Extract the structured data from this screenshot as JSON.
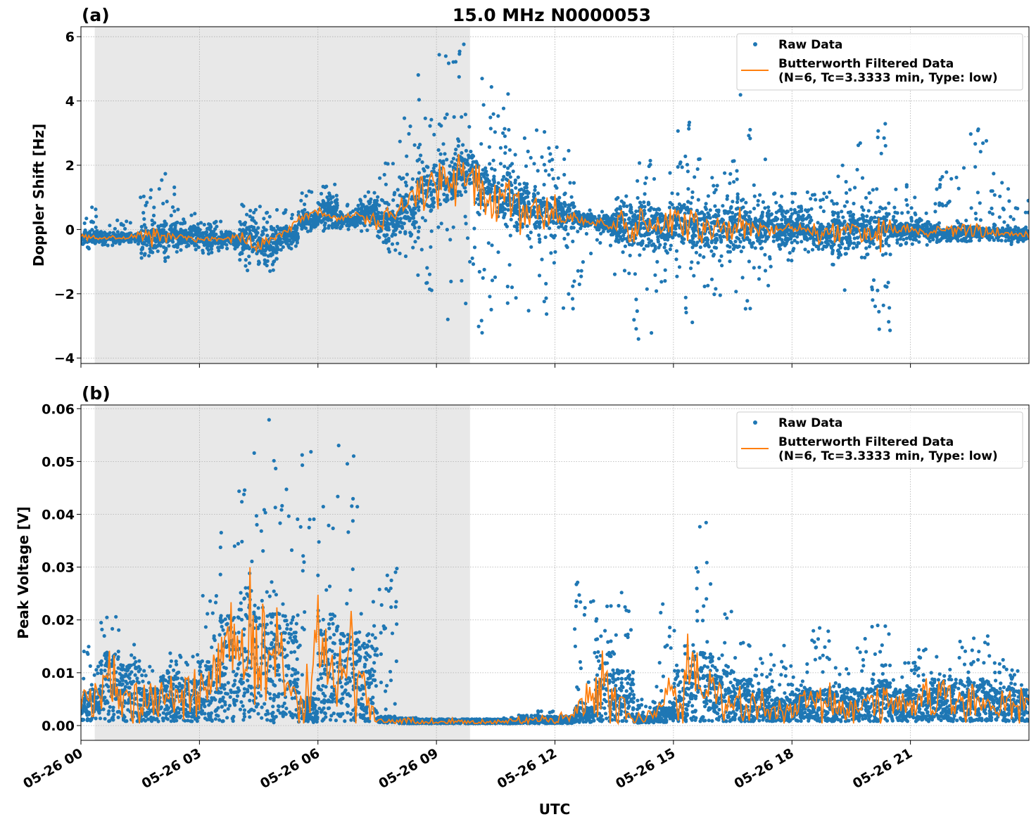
{
  "title": "15.0 MHz N0000053",
  "xlabel": "UTC",
  "chart_data": [
    {
      "panel_label": "(a)",
      "type": "scatter",
      "ylabel": "Doppler Shift [Hz]",
      "xlim": [
        "05-26 00:00",
        "05-27 00:00"
      ],
      "ylim": [
        -4.17,
        6.31
      ],
      "x_ticks": [
        "05-26 00",
        "05-26 03",
        "05-26 06",
        "05-26 09",
        "05-26 12",
        "05-26 15",
        "05-26 18",
        "05-26 21"
      ],
      "y_ticks": [
        6,
        4,
        2,
        0,
        -2,
        -4
      ],
      "y_tick_labels": [
        "6",
        "4",
        "2",
        "0",
        "−2",
        "−4"
      ],
      "grid": true,
      "legend_position": "top-right",
      "shaded_span": [
        "05-26 00:21",
        "05-26 09:51"
      ],
      "shade_color": "#e8e8e8",
      "x_hours": [
        0,
        0.5,
        1,
        1.5,
        2,
        2.5,
        3,
        3.5,
        4,
        4.5,
        5,
        5.5,
        6,
        6.5,
        7,
        7.5,
        8,
        8.5,
        9,
        9.5,
        10,
        10.5,
        11,
        11.5,
        12,
        12.5,
        13,
        13.5,
        14,
        14.5,
        15,
        15.5,
        16,
        16.5,
        17,
        17.5,
        18,
        18.5,
        19,
        19.5,
        20,
        20.5,
        21,
        21.5,
        22,
        22.5,
        23,
        23.5
      ],
      "series": [
        {
          "name": "Butterworth Filtered Data\n(N=6, Tc=3.3333 min, Type: low)",
          "kind": "line",
          "color": "#ff7f0e",
          "values": [
            -0.25,
            -0.25,
            -0.25,
            -0.25,
            -0.2,
            -0.2,
            -0.3,
            -0.3,
            -0.25,
            -0.5,
            -0.2,
            0.3,
            0.6,
            0.3,
            0.5,
            0.2,
            0.5,
            1.2,
            1.5,
            1.8,
            1.5,
            1.0,
            0.8,
            0.5,
            0.4,
            0.3,
            0.2,
            0.2,
            0.1,
            0.0,
            0.2,
            0.1,
            0.0,
            0.1,
            0.1,
            0.0,
            0.1,
            -0.1,
            -0.1,
            0.1,
            0.0,
            0.0,
            0.0,
            -0.1,
            -0.1,
            -0.1,
            -0.1,
            -0.15
          ]
        },
        {
          "name": "Raw Data",
          "kind": "scatter",
          "color": "#1f77b4",
          "envelope_high": [
            0.7,
            0.4,
            0.3,
            1.3,
            1.9,
            0.5,
            0.3,
            0.3,
            0.8,
            0.9,
            0.7,
            1.2,
            1.6,
            0.8,
            1.2,
            2.1,
            3.5,
            5.1,
            5.8,
            5.8,
            4.8,
            4.3,
            3.3,
            3.3,
            2.8,
            0.6,
            0.6,
            1.5,
            2.3,
            1.8,
            3.5,
            2.3,
            1.8,
            4.2,
            2.6,
            1.2,
            1.2,
            1.2,
            2.0,
            2.8,
            3.4,
            1.5,
            1.0,
            1.8,
            2.5,
            3.2,
            1.8,
            1.0
          ],
          "envelope_low": [
            -0.6,
            -0.5,
            -0.5,
            -0.9,
            -1.0,
            -0.7,
            -0.8,
            -0.6,
            -1.3,
            -1.3,
            -0.7,
            -0.1,
            -0.1,
            0.0,
            -0.1,
            -0.8,
            -1.0,
            -2.0,
            -3.0,
            -2.4,
            -3.3,
            -3.0,
            -2.8,
            -3.0,
            -2.5,
            -2.0,
            -0.6,
            -1.5,
            -3.6,
            -2.0,
            -2.9,
            -2.5,
            -3.7,
            -2.7,
            -1.8,
            -1.0,
            -0.7,
            -0.7,
            -1.9,
            -0.9,
            -3.2,
            -0.5,
            -0.5,
            -0.5,
            -0.5,
            -0.4,
            -0.4,
            -0.5
          ]
        }
      ]
    },
    {
      "panel_label": "(b)",
      "type": "scatter",
      "ylabel": "Peak Voltage [V]",
      "xlim": [
        "05-26 00:00",
        "05-27 00:00"
      ],
      "ylim": [
        -0.0028,
        0.0607
      ],
      "x_ticks": [
        "05-26 00",
        "05-26 03",
        "05-26 06",
        "05-26 09",
        "05-26 12",
        "05-26 15",
        "05-26 18",
        "05-26 21"
      ],
      "y_ticks": [
        0.06,
        0.05,
        0.04,
        0.03,
        0.02,
        0.01,
        0.0
      ],
      "y_tick_labels": [
        "0.06",
        "0.05",
        "0.04",
        "0.03",
        "0.02",
        "0.01",
        "0.00"
      ],
      "grid": true,
      "legend_position": "top-right",
      "shaded_span": [
        "05-26 00:21",
        "05-26 09:51"
      ],
      "shade_color": "#e8e8e8",
      "x_hours": [
        0,
        0.5,
        1,
        1.5,
        2,
        2.5,
        3,
        3.5,
        4,
        4.5,
        5,
        5.5,
        6,
        6.5,
        7,
        7.5,
        8,
        8.5,
        9,
        9.5,
        10,
        10.5,
        11,
        11.5,
        12,
        12.5,
        13,
        13.5,
        14,
        14.5,
        15,
        15.5,
        16,
        16.5,
        17,
        17.5,
        18,
        18.5,
        19,
        19.5,
        20,
        20.5,
        21,
        21.5,
        22,
        22.5,
        23,
        23.5
      ],
      "series": [
        {
          "name": "Butterworth Filtered Data\n(N=6, Tc=3.3333 min, Type: low)",
          "kind": "line",
          "color": "#ff7f0e",
          "values": [
            0.004,
            0.008,
            0.007,
            0.004,
            0.006,
            0.005,
            0.007,
            0.012,
            0.015,
            0.012,
            0.012,
            0.003,
            0.012,
            0.01,
            0.01,
            0.001,
            0.0008,
            0.0007,
            0.0007,
            0.0007,
            0.0007,
            0.0007,
            0.0008,
            0.001,
            0.001,
            0.002,
            0.008,
            0.006,
            0.001,
            0.002,
            0.006,
            0.008,
            0.006,
            0.005,
            0.004,
            0.003,
            0.004,
            0.004,
            0.004,
            0.004,
            0.005,
            0.004,
            0.004,
            0.005,
            0.005,
            0.005,
            0.004,
            0.004
          ]
        },
        {
          "name": "Raw Data",
          "kind": "scatter",
          "color": "#1f77b4",
          "envelope_high": [
            0.015,
            0.022,
            0.016,
            0.012,
            0.017,
            0.015,
            0.025,
            0.039,
            0.053,
            0.058,
            0.047,
            0.052,
            0.05,
            0.055,
            0.025,
            0.03,
            0.0015,
            0.0012,
            0.0012,
            0.0012,
            0.0012,
            0.0015,
            0.002,
            0.003,
            0.002,
            0.028,
            0.023,
            0.026,
            0.005,
            0.024,
            0.018,
            0.04,
            0.022,
            0.02,
            0.014,
            0.016,
            0.012,
            0.019,
            0.012,
            0.017,
            0.019,
            0.012,
            0.015,
            0.014,
            0.016,
            0.017,
            0.013,
            0.013
          ],
          "envelope_low": [
            0.0008,
            0.0008,
            0.0008,
            0.0008,
            0.0008,
            0.0008,
            0.0008,
            0.0008,
            0.0008,
            0.0005,
            0.0008,
            0.0005,
            0.0008,
            0.0008,
            0.0008,
            0.0005,
            0.0004,
            0.0004,
            0.0004,
            0.0004,
            0.0004,
            0.0004,
            0.0004,
            0.0004,
            0.0004,
            0.0006,
            0.0008,
            0.0008,
            0.0005,
            0.0006,
            0.0008,
            0.0008,
            0.0008,
            0.0008,
            0.0008,
            0.0008,
            0.0008,
            0.0008,
            0.0008,
            0.0008,
            0.0008,
            0.0008,
            0.0008,
            0.0008,
            0.0008,
            0.0008,
            0.0008,
            0.0008
          ]
        }
      ]
    }
  ]
}
